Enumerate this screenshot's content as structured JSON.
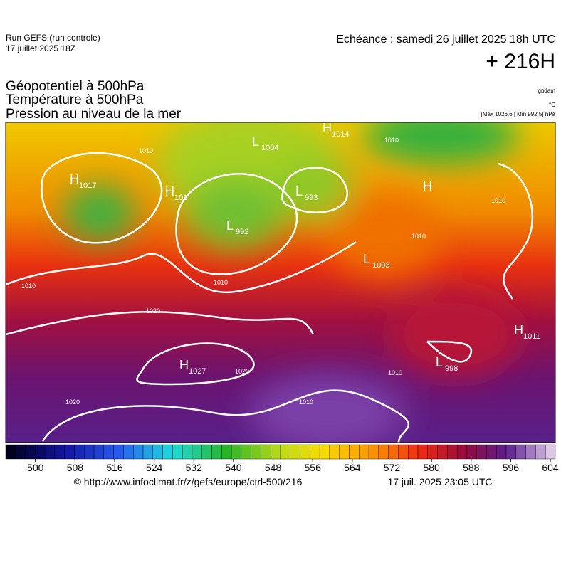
{
  "header": {
    "run": "Run GEFS (run controle)",
    "run_date": "17 juillet 2025 18Z",
    "echeance": "Echéance : samedi 26 juillet 2025 18h UTC",
    "lead": "+ 216H"
  },
  "titles": [
    "Géopotentiel à 500hPa",
    "Température à 500hPa",
    "Pression au niveau de la mer"
  ],
  "units": [
    "gpdam",
    "°C",
    "[Max 1026.6 | Min 992.5] hPa"
  ],
  "centers": [
    {
      "letter": "H",
      "value": 1017
    },
    {
      "letter": "L",
      "value": 1004
    },
    {
      "letter": "H",
      "value": 1014
    },
    {
      "letter": "H",
      "value": 101
    },
    {
      "letter": "L",
      "value": 993
    },
    {
      "letter": "L",
      "value": 992
    },
    {
      "letter": "H",
      "value": null
    },
    {
      "letter": "L",
      "value": 1003
    },
    {
      "letter": "H",
      "value": 1011
    },
    {
      "letter": "H",
      "value": 1027
    },
    {
      "letter": "L",
      "value": 998
    }
  ],
  "isobar_labels": [
    1010,
    1010,
    1010,
    1020,
    1020,
    1020,
    1010,
    1010,
    1010,
    1010,
    1010
  ],
  "colorbar": {
    "range": [
      494,
      605
    ],
    "ticks": [
      500,
      508,
      516,
      524,
      532,
      540,
      548,
      556,
      564,
      572,
      580,
      588,
      596,
      604
    ]
  },
  "footer": {
    "url": "© http://www.infoclimat.fr/z/gefs/europe/ctrl-500/216",
    "time": "17 juil. 2025 23:05 UTC"
  }
}
